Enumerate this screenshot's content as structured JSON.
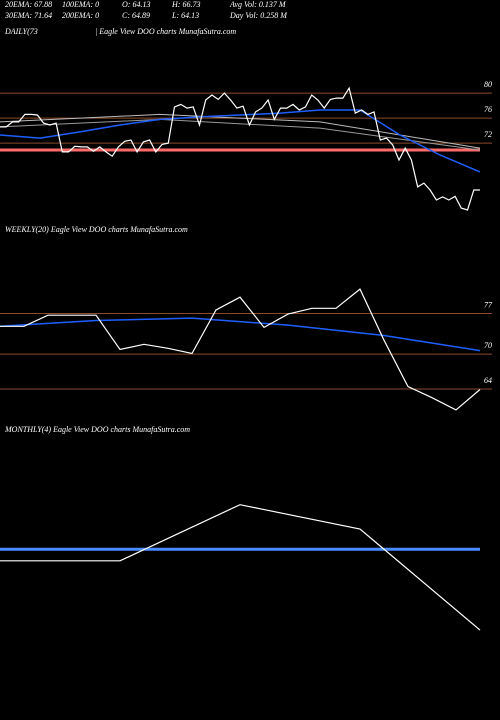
{
  "header": {
    "rows": [
      [
        "20EMA: 67.88",
        "100EMA: 0",
        "O: 64.13",
        "H: 66.73",
        "Avg Vol: 0.137 M"
      ],
      [
        "30EMA: 71.64",
        "200EMA: 0",
        "C: 64.89",
        "L: 64.13",
        "Day Vol: 0.258 M"
      ]
    ]
  },
  "chart_data": [
    {
      "type": "line",
      "title": "DAILY(73",
      "subtitle": "| Eagle  View  DOO charts MunafaSutra.com",
      "ylim": [
        56.5,
        88.5
      ],
      "yticks": [
        80,
        76,
        72
      ],
      "tick_line_color": "#8b4a2b",
      "series": [
        {
          "color": "#ff6b6b",
          "width": 3,
          "values": [
            70.9,
            70.9
          ]
        },
        {
          "color": "#bbbbbb",
          "width": 1,
          "values": [
            75.4,
            76.6,
            75.4,
            71.2
          ]
        },
        {
          "color": "#999999",
          "width": 1,
          "values": [
            74.6,
            75.8,
            74.4,
            70.9
          ]
        },
        {
          "color": "#1f5fff",
          "width": 1.5,
          "values": [
            73.3,
            72.8,
            73.8,
            74.9,
            75.8,
            76.2,
            76.5,
            76.8,
            77.3,
            77.3,
            73.3,
            70.1,
            67.4
          ]
        },
        {
          "color": "#ffffff",
          "width": 1.2,
          "values": [
            74.6,
            74.6,
            75.4,
            75.4,
            76.6,
            76.6,
            76.5,
            75.2,
            74.9,
            75.2,
            70.6,
            70.6,
            71.5,
            71.4,
            71.4,
            70.7,
            71.4,
            70.6,
            69.9,
            71.4,
            72.3,
            72.5,
            70.6,
            72.2,
            72.5,
            70.6,
            71.8,
            72,
            77.8,
            78.2,
            77.6,
            77.8,
            74.9,
            78.9,
            79.7,
            79,
            80,
            78.9,
            77.6,
            77.9,
            74.9,
            77,
            77.6,
            78.9,
            75.8,
            77.6,
            77.6,
            78.2,
            77.3,
            77.8,
            79.7,
            78.9,
            77.6,
            79,
            79.2,
            79.2,
            80.8,
            76.8,
            77.3,
            76.6,
            77,
            72.5,
            72.8,
            71.7,
            69.3,
            71.2,
            69.3,
            65,
            65.6,
            64.5,
            62.9,
            63.4,
            62.9,
            63.5,
            61.6,
            61.3,
            64.5,
            64.5
          ]
        }
      ]
    },
    {
      "type": "line",
      "title": "WEEKLY(20) Eagle  View  DOO charts MunafaSutra.com",
      "ylim": [
        59,
        90
      ],
      "yticks": [
        77,
        70,
        64
      ],
      "tick_line_color": "#8b4a2b",
      "series": [
        {
          "color": "#1f5fff",
          "width": 1.5,
          "values": [
            74.8,
            75.8,
            76.2,
            75,
            73.2,
            70.6
          ]
        },
        {
          "color": "#ffffff",
          "width": 1.2,
          "values": [
            74.8,
            74.8,
            76.7,
            76.7,
            76.7,
            70.8,
            71.7,
            71,
            70.1,
            77.6,
            79.8,
            74.6,
            76.9,
            77.9,
            77.9,
            81.2,
            72.4,
            64.4,
            62.5,
            60.4,
            63.9
          ]
        }
      ]
    },
    {
      "type": "line",
      "title": "MONTHLY(4) Eagle  View  DOO charts MunafaSutra.com",
      "ylim": [
        50,
        95
      ],
      "yticks": [],
      "tick_line_color": "#8b4a2b",
      "series": [
        {
          "color": "#4a8cff",
          "width": 3,
          "values": [
            76.1,
            76.1
          ]
        },
        {
          "color": "#ffffff",
          "width": 1.2,
          "values": [
            74.1,
            74.1,
            83.8,
            79.6,
            62.1
          ]
        }
      ]
    }
  ]
}
